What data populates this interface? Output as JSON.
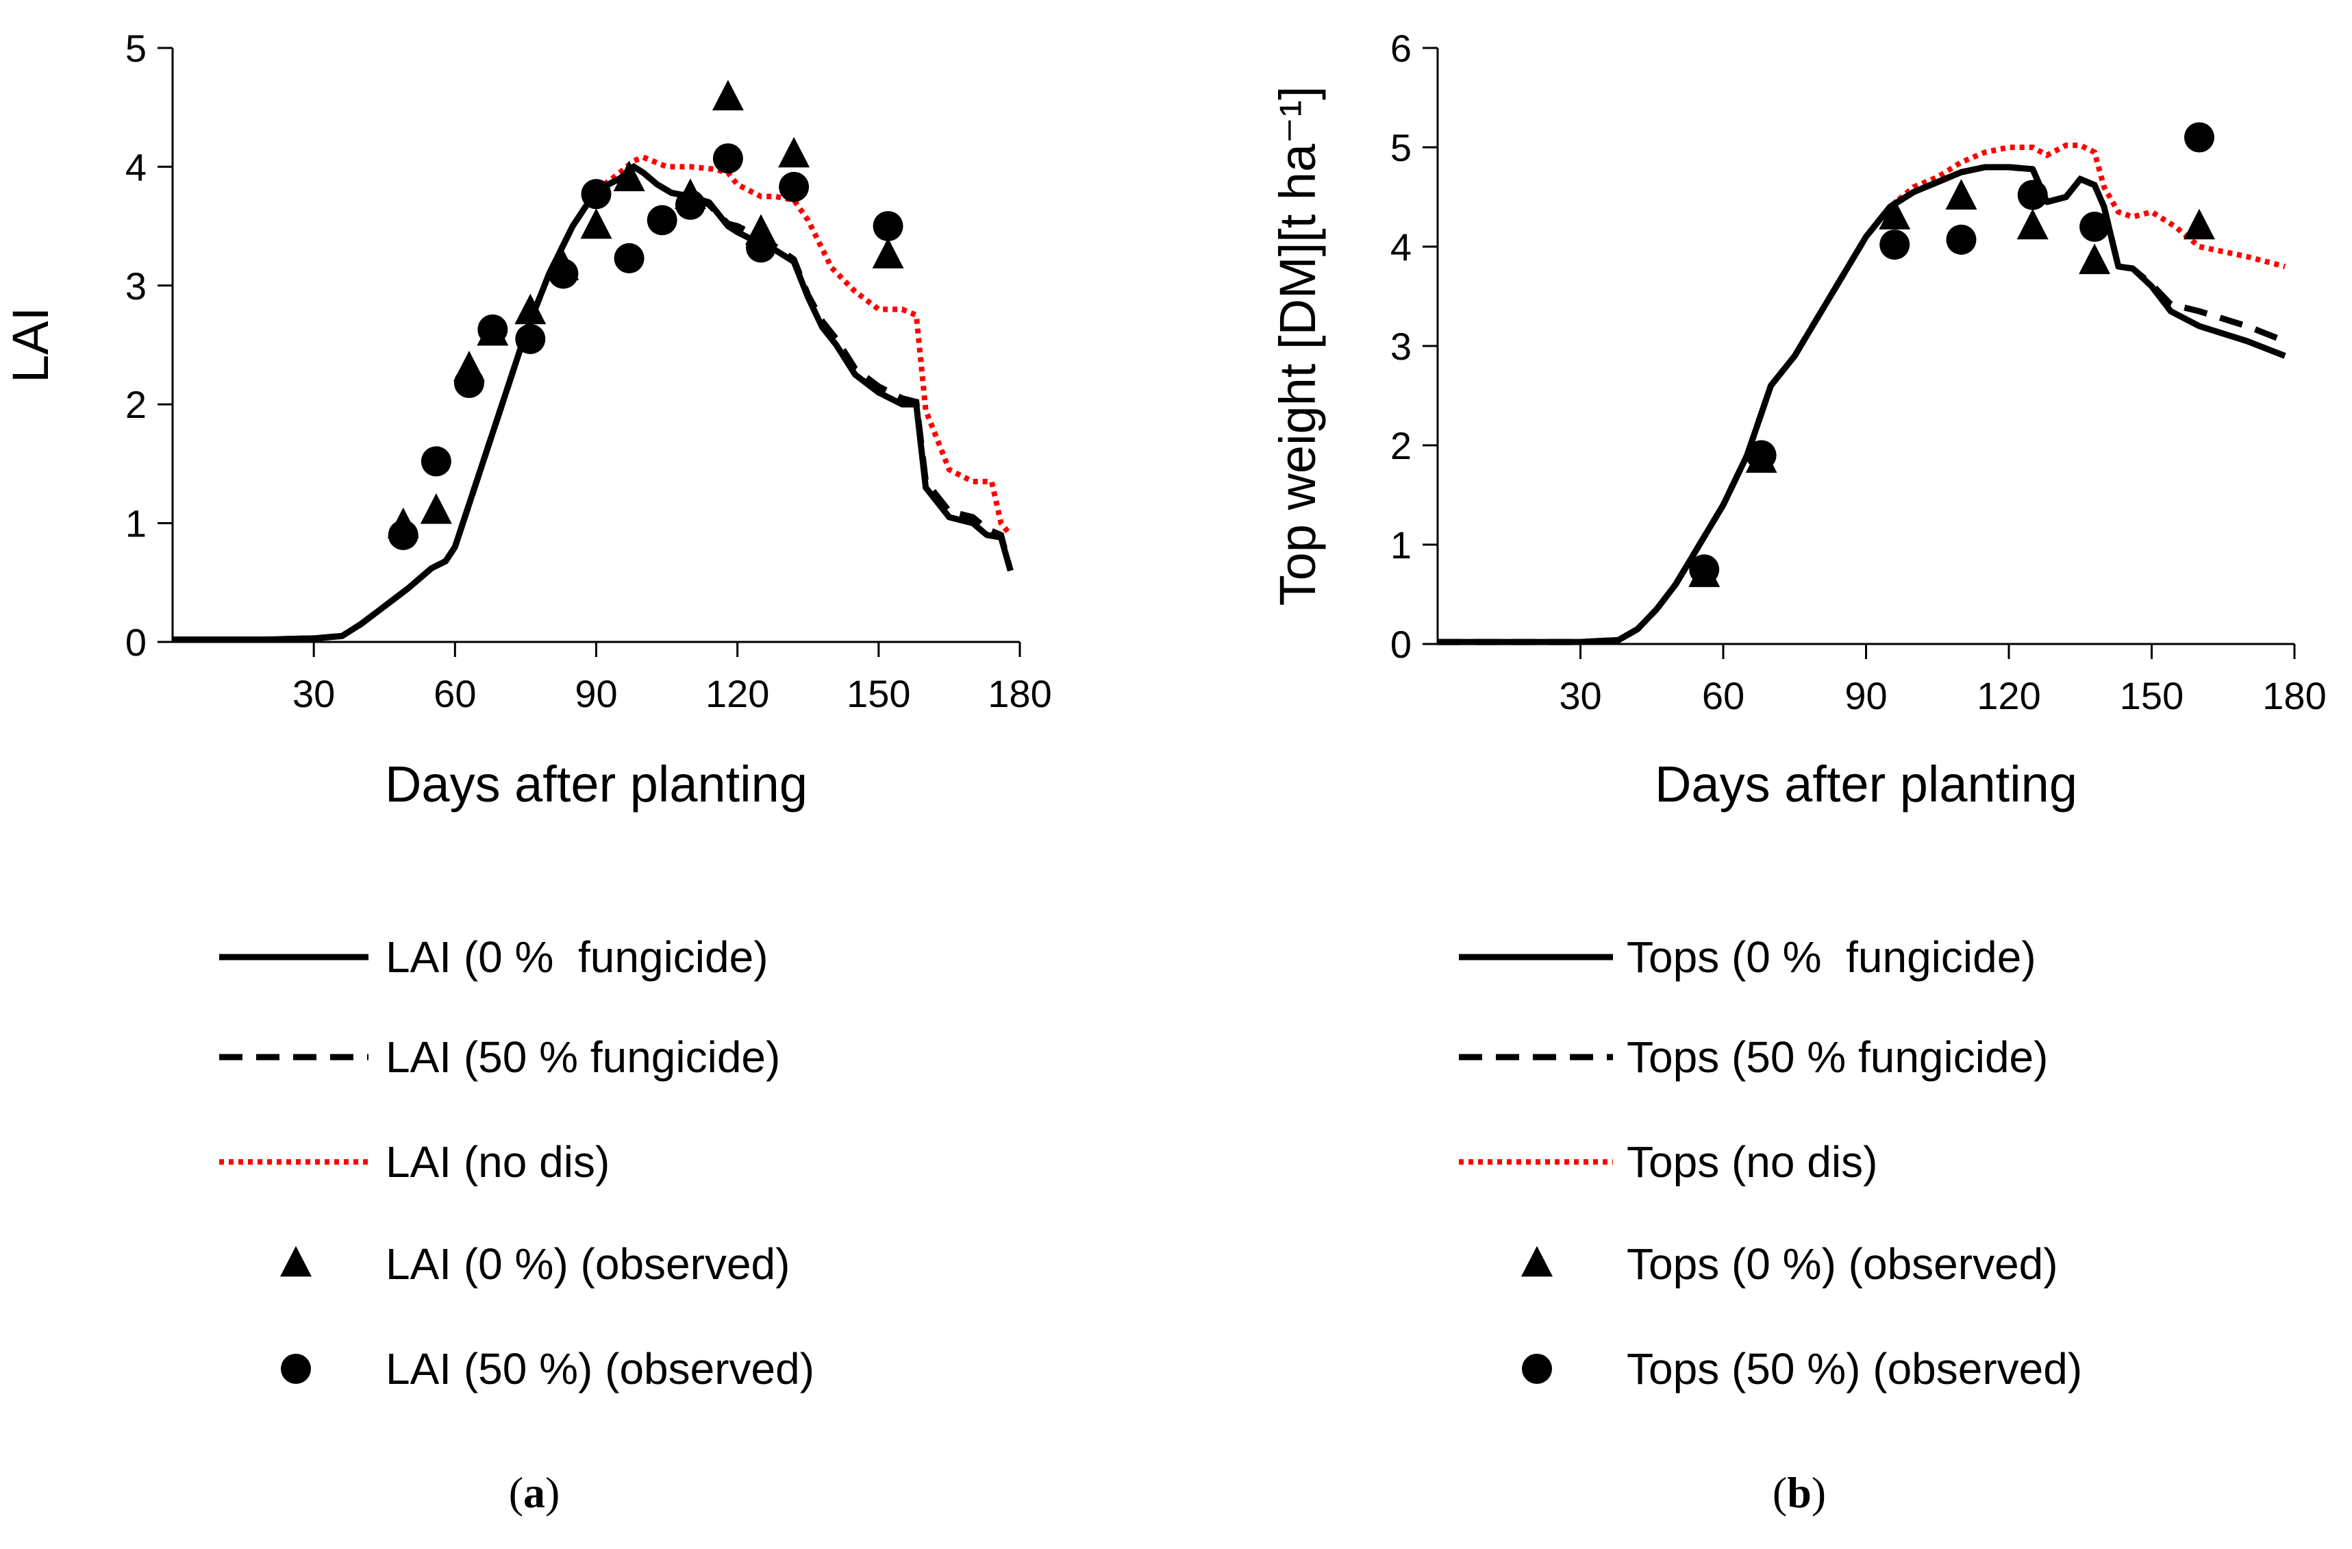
{
  "chart_data": [
    {
      "type": "line",
      "panel": "(a)",
      "panel_letter": "a",
      "xlabel": "Days after planting",
      "ylabel": "LAI",
      "xlim": [
        0,
        180
      ],
      "ylim": [
        0,
        5
      ],
      "xticks": [
        30,
        60,
        90,
        120,
        150,
        180
      ],
      "yticks": [
        0,
        1,
        2,
        3,
        4,
        5
      ],
      "series": [
        {
          "name": "LAI (0 %  fungicide)",
          "style": "solid",
          "color": "#000000",
          "x": [
            0,
            20,
            30,
            36,
            40,
            45,
            50,
            55,
            58,
            60,
            65,
            70,
            75,
            80,
            85,
            90,
            95,
            98,
            100,
            103,
            106,
            110,
            114,
            118,
            120,
            125,
            128,
            132,
            135,
            138,
            141,
            145,
            150,
            155,
            158,
            160,
            162,
            165,
            170,
            173,
            176,
            178
          ],
          "y": [
            0.02,
            0.02,
            0.03,
            0.05,
            0.15,
            0.3,
            0.45,
            0.62,
            0.68,
            0.8,
            1.4,
            2.0,
            2.6,
            3.1,
            3.5,
            3.8,
            3.9,
            4.0,
            3.95,
            3.85,
            3.78,
            3.75,
            3.7,
            3.5,
            3.45,
            3.35,
            3.3,
            3.2,
            2.9,
            2.65,
            2.5,
            2.25,
            2.1,
            2.0,
            2.0,
            1.3,
            1.2,
            1.05,
            1.0,
            0.9,
            0.88,
            0.6
          ]
        },
        {
          "name": "LAI (50 % fungicide)",
          "style": "dashed",
          "color": "#000000",
          "x": [
            0,
            20,
            30,
            36,
            40,
            45,
            50,
            55,
            58,
            60,
            65,
            70,
            75,
            80,
            85,
            90,
            95,
            98,
            100,
            103,
            106,
            110,
            114,
            118,
            120,
            125,
            128,
            132,
            135,
            138,
            141,
            145,
            150,
            155,
            158,
            160,
            162,
            165,
            170,
            173,
            176,
            178
          ],
          "y": [
            0.02,
            0.02,
            0.03,
            0.05,
            0.15,
            0.3,
            0.45,
            0.62,
            0.68,
            0.8,
            1.4,
            2.0,
            2.6,
            3.1,
            3.5,
            3.8,
            3.9,
            4.0,
            3.95,
            3.85,
            3.78,
            3.75,
            3.68,
            3.52,
            3.5,
            3.4,
            3.33,
            3.22,
            2.92,
            2.7,
            2.55,
            2.3,
            2.15,
            2.05,
            2.02,
            1.35,
            1.25,
            1.1,
            1.05,
            0.95,
            0.9,
            0.6
          ]
        },
        {
          "name": "LAI (no dis)",
          "style": "dotted",
          "color": "#ff0000",
          "x": [
            0,
            20,
            30,
            36,
            40,
            45,
            50,
            55,
            58,
            60,
            65,
            70,
            75,
            80,
            85,
            90,
            95,
            98,
            100,
            105,
            110,
            115,
            118,
            120,
            125,
            128,
            132,
            135,
            140,
            145,
            150,
            155,
            158,
            160,
            162,
            165,
            170,
            174,
            176,
            178
          ],
          "y": [
            0.02,
            0.02,
            0.03,
            0.05,
            0.15,
            0.3,
            0.45,
            0.62,
            0.68,
            0.8,
            1.4,
            2.0,
            2.6,
            3.1,
            3.5,
            3.8,
            3.95,
            4.05,
            4.08,
            4.0,
            4.0,
            3.98,
            3.95,
            3.85,
            3.75,
            3.75,
            3.72,
            3.55,
            3.15,
            2.95,
            2.8,
            2.8,
            2.75,
            1.95,
            1.75,
            1.45,
            1.35,
            1.35,
            1.0,
            0.9
          ]
        },
        {
          "name": "LAI (0 %) (observed)",
          "style": "marker-triangle",
          "color": "#000000",
          "x": [
            49,
            56,
            63,
            68,
            76,
            83,
            90,
            97,
            110,
            118,
            125,
            132,
            152
          ],
          "y": [
            0.98,
            1.1,
            2.3,
            2.6,
            2.78,
            3.15,
            3.5,
            3.9,
            3.75,
            4.58,
            3.45,
            4.1,
            3.25
          ]
        },
        {
          "name": "LAI (50 %) (observed)",
          "style": "marker-circle",
          "color": "#000000",
          "x": [
            49,
            56,
            63,
            68,
            76,
            83,
            90,
            97,
            104,
            110,
            118,
            125,
            132,
            152
          ],
          "y": [
            0.9,
            1.52,
            2.18,
            2.63,
            2.55,
            3.1,
            3.77,
            3.23,
            3.55,
            3.68,
            4.07,
            3.32,
            3.83,
            3.5
          ]
        }
      ]
    },
    {
      "type": "line",
      "panel": "(b)",
      "panel_letter": "b",
      "xlabel": "Days after planting",
      "ylabel": "Top weight [DM][t ha⁻¹]",
      "xlim": [
        0,
        180
      ],
      "ylim": [
        0,
        6
      ],
      "xticks": [
        30,
        60,
        90,
        120,
        150,
        180
      ],
      "yticks": [
        0,
        1,
        2,
        3,
        4,
        5,
        6
      ],
      "series": [
        {
          "name": "Tops (0 %  fungicide)",
          "style": "solid",
          "color": "#000000",
          "x": [
            0,
            30,
            38,
            42,
            46,
            50,
            55,
            60,
            65,
            70,
            75,
            80,
            85,
            90,
            95,
            100,
            105,
            110,
            115,
            120,
            125,
            128,
            132,
            135,
            138,
            140,
            143,
            146,
            150,
            154,
            160,
            170,
            178
          ],
          "y": [
            0.02,
            0.02,
            0.04,
            0.15,
            0.35,
            0.6,
            1.0,
            1.4,
            1.9,
            2.6,
            2.9,
            3.3,
            3.7,
            4.1,
            4.4,
            4.55,
            4.65,
            4.75,
            4.8,
            4.8,
            4.78,
            4.45,
            4.5,
            4.68,
            4.62,
            4.4,
            3.8,
            3.78,
            3.6,
            3.35,
            3.2,
            3.05,
            2.9
          ]
        },
        {
          "name": "Tops (50 % fungicide)",
          "style": "dashed",
          "color": "#000000",
          "x": [
            0,
            30,
            38,
            42,
            46,
            50,
            55,
            60,
            65,
            70,
            75,
            80,
            85,
            90,
            95,
            100,
            105,
            110,
            115,
            120,
            125,
            128,
            132,
            135,
            138,
            140,
            143,
            146,
            150,
            154,
            160,
            170,
            178
          ],
          "y": [
            0.02,
            0.02,
            0.04,
            0.15,
            0.35,
            0.6,
            1.0,
            1.4,
            1.9,
            2.6,
            2.9,
            3.3,
            3.7,
            4.1,
            4.4,
            4.55,
            4.65,
            4.75,
            4.8,
            4.8,
            4.78,
            4.45,
            4.5,
            4.68,
            4.62,
            4.4,
            3.8,
            3.78,
            3.62,
            3.42,
            3.35,
            3.2,
            3.05
          ]
        },
        {
          "name": "Tops (no dis)",
          "style": "dotted",
          "color": "#ff0000",
          "x": [
            0,
            30,
            38,
            42,
            46,
            50,
            55,
            60,
            65,
            70,
            75,
            80,
            85,
            90,
            95,
            100,
            105,
            110,
            115,
            120,
            125,
            128,
            132,
            135,
            138,
            140,
            143,
            146,
            150,
            155,
            160,
            170,
            178
          ],
          "y": [
            0.02,
            0.02,
            0.04,
            0.15,
            0.35,
            0.6,
            1.0,
            1.4,
            1.9,
            2.6,
            2.9,
            3.3,
            3.7,
            4.1,
            4.4,
            4.6,
            4.7,
            4.85,
            4.95,
            5.0,
            5.0,
            4.92,
            5.02,
            5.02,
            4.95,
            4.6,
            4.35,
            4.3,
            4.35,
            4.2,
            4.0,
            3.9,
            3.8
          ]
        },
        {
          "name": "Tops (0 %) (observed)",
          "style": "marker-triangle",
          "color": "#000000",
          "x": [
            56,
            68,
            96,
            110,
            125,
            138,
            160
          ],
          "y": [
            0.7,
            1.85,
            4.3,
            4.5,
            4.2,
            3.85,
            4.2
          ]
        },
        {
          "name": "Tops (50 %) (observed)",
          "style": "marker-circle",
          "color": "#000000",
          "x": [
            56,
            68,
            96,
            110,
            125,
            138,
            160
          ],
          "y": [
            0.75,
            1.9,
            4.02,
            4.07,
            4.52,
            4.2,
            5.1
          ]
        }
      ]
    }
  ]
}
